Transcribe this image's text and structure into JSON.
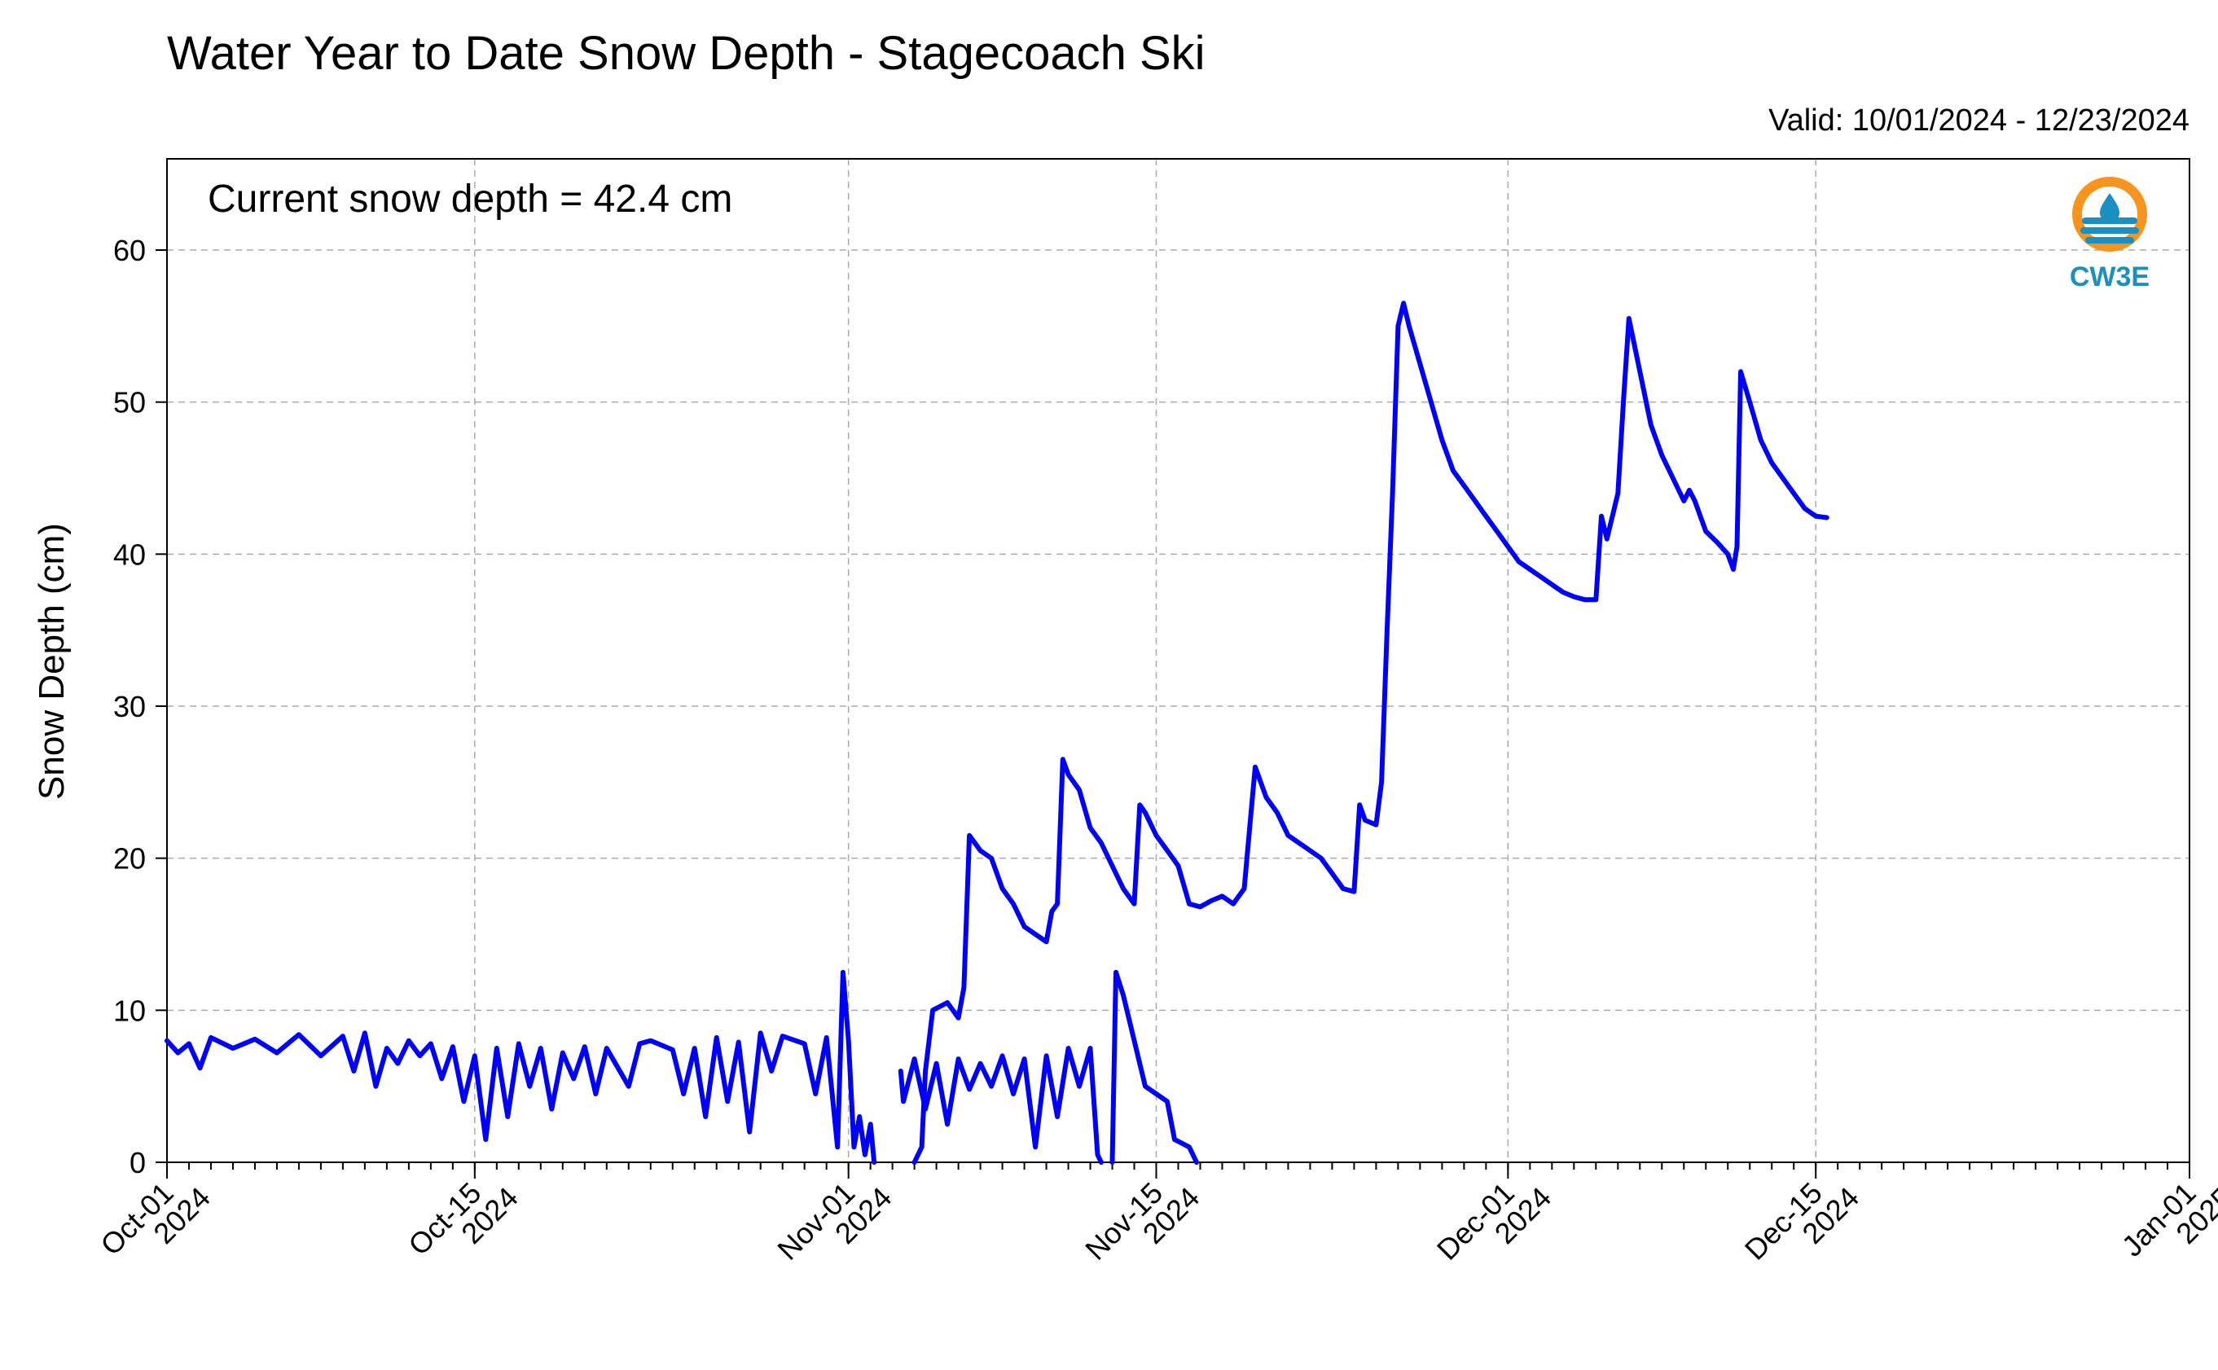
{
  "chart_data": {
    "type": "line",
    "title": "Water Year to Date Snow Depth - Stagecoach Ski",
    "subtitle": "Valid: 10/01/2024 - 12/23/2024",
    "annotation": "Current snow depth = 42.4 cm",
    "ylabel": "Snow Depth (cm)",
    "xlabel": "",
    "xlim": [
      "2024-10-01",
      "2025-01-01"
    ],
    "ylim": [
      0,
      66
    ],
    "yticks": [
      0,
      10,
      20,
      30,
      40,
      50,
      60
    ],
    "xticks": [
      {
        "date": "2024-10-01",
        "label": [
          "Oct-01",
          "2024"
        ]
      },
      {
        "date": "2024-10-15",
        "label": [
          "Oct-15",
          "2024"
        ]
      },
      {
        "date": "2024-11-01",
        "label": [
          "Nov-01",
          "2024"
        ]
      },
      {
        "date": "2024-11-15",
        "label": [
          "Nov-15",
          "2024"
        ]
      },
      {
        "date": "2024-12-01",
        "label": [
          "Dec-01",
          "2024"
        ]
      },
      {
        "date": "2024-12-15",
        "label": [
          "Dec-15",
          "2024"
        ]
      },
      {
        "date": "2025-01-01",
        "label": [
          "Jan-01",
          "2025"
        ]
      }
    ],
    "grid": true,
    "line_color": "#0000ff",
    "series": [
      {
        "name": "",
        "segments": [
          [
            [
              "2024-10-01 00:00",
              8.0
            ],
            [
              "2024-10-01 12:00",
              7.2
            ],
            [
              "2024-10-02 00:00",
              7.8
            ],
            [
              "2024-10-02 12:00",
              6.2
            ],
            [
              "2024-10-03 00:00",
              8.2
            ],
            [
              "2024-10-04 00:00",
              7.5
            ],
            [
              "2024-10-05 00:00",
              8.1
            ],
            [
              "2024-10-06 00:00",
              7.2
            ],
            [
              "2024-10-07 00:00",
              8.4
            ],
            [
              "2024-10-08 00:00",
              7.0
            ],
            [
              "2024-10-09 00:00",
              8.3
            ],
            [
              "2024-10-09 12:00",
              6.0
            ],
            [
              "2024-10-10 00:00",
              8.5
            ],
            [
              "2024-10-10 12:00",
              5.0
            ],
            [
              "2024-10-11 00:00",
              7.5
            ],
            [
              "2024-10-11 12:00",
              6.5
            ],
            [
              "2024-10-12 00:00",
              8.0
            ],
            [
              "2024-10-12 12:00",
              7.0
            ],
            [
              "2024-10-13 00:00",
              7.8
            ],
            [
              "2024-10-13 12:00",
              5.5
            ],
            [
              "2024-10-14 00:00",
              7.6
            ],
            [
              "2024-10-14 12:00",
              4.0
            ],
            [
              "2024-10-15 00:00",
              7.0
            ],
            [
              "2024-10-15 12:00",
              1.5
            ],
            [
              "2024-10-16 00:00",
              7.5
            ],
            [
              "2024-10-16 12:00",
              3.0
            ],
            [
              "2024-10-17 00:00",
              7.8
            ],
            [
              "2024-10-17 12:00",
              5.0
            ],
            [
              "2024-10-18 00:00",
              7.5
            ],
            [
              "2024-10-18 12:00",
              3.5
            ],
            [
              "2024-10-19 00:00",
              7.2
            ],
            [
              "2024-10-19 12:00",
              5.5
            ],
            [
              "2024-10-20 00:00",
              7.6
            ],
            [
              "2024-10-20 12:00",
              4.5
            ],
            [
              "2024-10-21 00:00",
              7.5
            ],
            [
              "2024-10-22 00:00",
              5.0
            ],
            [
              "2024-10-22 12:00",
              7.8
            ],
            [
              "2024-10-23 00:00",
              8.0
            ],
            [
              "2024-10-24 00:00",
              7.4
            ],
            [
              "2024-10-24 12:00",
              4.5
            ],
            [
              "2024-10-25 00:00",
              7.5
            ],
            [
              "2024-10-25 12:00",
              3.0
            ],
            [
              "2024-10-26 00:00",
              8.2
            ],
            [
              "2024-10-26 12:00",
              4.0
            ],
            [
              "2024-10-27 00:00",
              7.9
            ],
            [
              "2024-10-27 12:00",
              2.0
            ],
            [
              "2024-10-28 00:00",
              8.5
            ],
            [
              "2024-10-28 12:00",
              6.0
            ],
            [
              "2024-10-29 00:00",
              8.3
            ],
            [
              "2024-10-30 00:00",
              7.8
            ],
            [
              "2024-10-30 12:00",
              4.5
            ],
            [
              "2024-10-31 00:00",
              8.2
            ],
            [
              "2024-10-31 12:00",
              1.0
            ],
            [
              "2024-10-31 18:00",
              12.5
            ],
            [
              "2024-11-01 00:00",
              8.0
            ],
            [
              "2024-11-01 06:00",
              1.0
            ],
            [
              "2024-11-01 12:00",
              3.0
            ],
            [
              "2024-11-01 18:00",
              0.5
            ],
            [
              "2024-11-02 00:00",
              2.5
            ],
            [
              "2024-11-02 04:00",
              0.0
            ]
          ],
          [
            [
              "2024-11-03 09:00",
              6.0
            ],
            [
              "2024-11-03 12:00",
              4.0
            ],
            [
              "2024-11-04 00:00",
              6.8
            ],
            [
              "2024-11-04 12:00",
              3.5
            ],
            [
              "2024-11-05 00:00",
              6.5
            ],
            [
              "2024-11-05 12:00",
              2.5
            ],
            [
              "2024-11-06 00:00",
              6.8
            ],
            [
              "2024-11-06 12:00",
              4.8
            ],
            [
              "2024-11-07 00:00",
              6.5
            ],
            [
              "2024-11-07 12:00",
              5.0
            ],
            [
              "2024-11-08 00:00",
              7.0
            ],
            [
              "2024-11-08 12:00",
              4.5
            ],
            [
              "2024-11-09 00:00",
              6.8
            ],
            [
              "2024-11-09 12:00",
              1.0
            ],
            [
              "2024-11-10 00:00",
              7.0
            ],
            [
              "2024-11-10 12:00",
              3.0
            ],
            [
              "2024-11-11 00:00",
              7.5
            ],
            [
              "2024-11-11 12:00",
              5.0
            ],
            [
              "2024-11-12 00:00",
              7.5
            ],
            [
              "2024-11-12 08:00",
              0.5
            ],
            [
              "2024-11-12 12:00",
              0.0
            ]
          ],
          [
            [
              "2024-11-13 00:00",
              0.0
            ],
            [
              "2024-11-13 04:00",
              12.5
            ],
            [
              "2024-11-13 12:00",
              11.0
            ],
            [
              "2024-11-14 00:00",
              8.0
            ],
            [
              "2024-11-14 12:00",
              5.0
            ],
            [
              "2024-11-15 00:00",
              4.5
            ],
            [
              "2024-11-15 12:00",
              4.0
            ],
            [
              "2024-11-15 20:00",
              1.5
            ],
            [
              "2024-11-16 12:00",
              1.0
            ],
            [
              "2024-11-16 20:00",
              0.0
            ]
          ],
          [
            [
              "2024-11-04 00:00",
              0.0
            ],
            [
              "2024-11-04 08:00",
              1.0
            ],
            [
              "2024-11-04 12:00",
              6.0
            ],
            [
              "2024-11-04 20:00",
              10.0
            ],
            [
              "2024-11-05 12:00",
              10.5
            ],
            [
              "2024-11-06 00:00",
              9.5
            ],
            [
              "2024-11-06 06:00",
              11.5
            ],
            [
              "2024-11-06 12:00",
              21.5
            ],
            [
              "2024-11-07 00:00",
              20.5
            ],
            [
              "2024-11-07 12:00",
              20.0
            ],
            [
              "2024-11-08 00:00",
              18.0
            ],
            [
              "2024-11-08 12:00",
              17.0
            ],
            [
              "2024-11-09 00:00",
              15.5
            ],
            [
              "2024-11-09 12:00",
              15.0
            ],
            [
              "2024-11-10 00:00",
              14.5
            ],
            [
              "2024-11-10 06:00",
              16.5
            ],
            [
              "2024-11-10 12:00",
              17.0
            ],
            [
              "2024-11-10 18:00",
              26.5
            ],
            [
              "2024-11-11 00:00",
              25.5
            ],
            [
              "2024-11-11 12:00",
              24.5
            ],
            [
              "2024-11-12 00:00",
              22.0
            ],
            [
              "2024-11-12 12:00",
              21.0
            ],
            [
              "2024-11-13 00:00",
              19.5
            ],
            [
              "2024-11-13 12:00",
              18.0
            ],
            [
              "2024-11-14 00:00",
              17.0
            ],
            [
              "2024-11-14 06:00",
              23.5
            ],
            [
              "2024-11-14 12:00",
              23.0
            ],
            [
              "2024-11-15 00:00",
              21.5
            ],
            [
              "2024-11-15 12:00",
              20.5
            ],
            [
              "2024-11-16 00:00",
              19.5
            ],
            [
              "2024-11-16 12:00",
              17.0
            ],
            [
              "2024-11-17 00:00",
              16.8
            ],
            [
              "2024-11-17 12:00",
              17.2
            ],
            [
              "2024-11-18 00:00",
              17.5
            ],
            [
              "2024-11-18 12:00",
              17.0
            ],
            [
              "2024-11-19 00:00",
              18.0
            ],
            [
              "2024-11-19 06:00",
              22.0
            ],
            [
              "2024-11-19 12:00",
              26.0
            ],
            [
              "2024-11-20 00:00",
              24.0
            ],
            [
              "2024-11-20 12:00",
              23.0
            ],
            [
              "2024-11-21 00:00",
              21.5
            ],
            [
              "2024-11-21 12:00",
              21.0
            ],
            [
              "2024-11-22 00:00",
              20.5
            ],
            [
              "2024-11-22 12:00",
              20.0
            ],
            [
              "2024-11-23 00:00",
              19.0
            ],
            [
              "2024-11-23 12:00",
              18.0
            ],
            [
              "2024-11-24 00:00",
              17.8
            ],
            [
              "2024-11-24 06:00",
              23.5
            ],
            [
              "2024-11-24 12:00",
              22.5
            ],
            [
              "2024-11-25 00:00",
              22.2
            ],
            [
              "2024-11-25 06:00",
              25.0
            ],
            [
              "2024-11-25 12:00",
              35.0
            ],
            [
              "2024-11-25 18:00",
              44.0
            ],
            [
              "2024-11-26 00:00",
              55.0
            ],
            [
              "2024-11-26 06:00",
              56.5
            ],
            [
              "2024-11-26 12:00",
              55.0
            ],
            [
              "2024-11-27 00:00",
              52.5
            ],
            [
              "2024-11-27 12:00",
              50.0
            ],
            [
              "2024-11-28 00:00",
              47.5
            ],
            [
              "2024-11-28 12:00",
              45.5
            ],
            [
              "2024-11-29 00:00",
              44.5
            ],
            [
              "2024-11-29 12:00",
              43.5
            ],
            [
              "2024-11-30 00:00",
              42.5
            ],
            [
              "2024-11-30 12:00",
              41.5
            ],
            [
              "2024-12-01 00:00",
              40.5
            ],
            [
              "2024-12-01 12:00",
              39.5
            ],
            [
              "2024-12-02 00:00",
              39.0
            ],
            [
              "2024-12-02 12:00",
              38.5
            ],
            [
              "2024-12-03 00:00",
              38.0
            ],
            [
              "2024-12-03 12:00",
              37.5
            ],
            [
              "2024-12-04 00:00",
              37.2
            ],
            [
              "2024-12-04 12:00",
              37.0
            ],
            [
              "2024-12-05 00:00",
              37.0
            ],
            [
              "2024-12-05 06:00",
              42.5
            ],
            [
              "2024-12-05 12:00",
              41.0
            ],
            [
              "2024-12-06 00:00",
              44.0
            ],
            [
              "2024-12-06 06:00",
              50.0
            ],
            [
              "2024-12-06 12:00",
              55.5
            ],
            [
              "2024-12-07 00:00",
              52.0
            ],
            [
              "2024-12-07 12:00",
              48.5
            ],
            [
              "2024-12-08 00:00",
              46.5
            ],
            [
              "2024-12-08 12:00",
              45.0
            ],
            [
              "2024-12-09 00:00",
              43.5
            ],
            [
              "2024-12-09 06:00",
              44.2
            ],
            [
              "2024-12-09 12:00",
              43.5
            ],
            [
              "2024-12-10 00:00",
              41.5
            ],
            [
              "2024-12-10 12:00",
              40.8
            ],
            [
              "2024-12-11 00:00",
              40.0
            ],
            [
              "2024-12-11 06:00",
              39.0
            ],
            [
              "2024-12-11 10:00",
              40.5
            ],
            [
              "2024-12-11 14:00",
              52.0
            ],
            [
              "2024-12-12 00:00",
              50.0
            ],
            [
              "2024-12-12 12:00",
              47.5
            ],
            [
              "2024-12-13 00:00",
              46.0
            ],
            [
              "2024-12-13 12:00",
              45.0
            ],
            [
              "2024-12-14 00:00",
              44.0
            ],
            [
              "2024-12-14 12:00",
              43.0
            ],
            [
              "2024-12-15 00:00",
              42.5
            ],
            [
              "2024-12-15 12:00",
              42.4
            ]
          ]
        ]
      }
    ]
  },
  "logo": {
    "text": "CW3E",
    "ring_color": "#f7941d",
    "wave_color": "#1b8fc0"
  }
}
